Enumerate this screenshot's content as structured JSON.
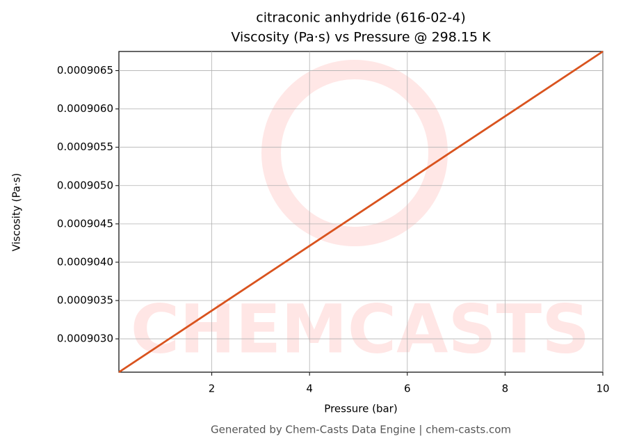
{
  "chart_data": {
    "type": "line",
    "title": "citraconic anhydride (616-02-4)",
    "subtitle": "Viscosity (Pa·s) vs Pressure @ 298.15 K",
    "x_label": "Pressure (bar)",
    "y_label": "Viscosity (Pa·s)",
    "footer": "Generated by Chem-Casts Data Engine | chem-casts.com",
    "watermark": "CHEMCASTS",
    "x": [
      0.1,
      2,
      4,
      6,
      8,
      10
    ],
    "series": [
      {
        "name": "Viscosity",
        "color": "#d9531e",
        "values": [
          0.000902565,
          0.000903368,
          0.000904213,
          0.000905059,
          0.000905904,
          0.00090675
        ]
      }
    ],
    "xlim": [
      0.1,
      10
    ],
    "ylim": [
      0.000902565,
      0.00090675
    ],
    "xticks": [
      2,
      4,
      6,
      8,
      10
    ],
    "yticks": [
      {
        "value": 0.000903,
        "label": "0.0009030"
      },
      {
        "value": 0.0009035,
        "label": "0.0009035"
      },
      {
        "value": 0.000904,
        "label": "0.0009040"
      },
      {
        "value": 0.0009045,
        "label": "0.0009045"
      },
      {
        "value": 0.000905,
        "label": "0.0009050"
      },
      {
        "value": 0.0009055,
        "label": "0.0009055"
      },
      {
        "value": 0.000906,
        "label": "0.0009060"
      },
      {
        "value": 0.0009065,
        "label": "0.0009065"
      }
    ],
    "grid": true
  }
}
